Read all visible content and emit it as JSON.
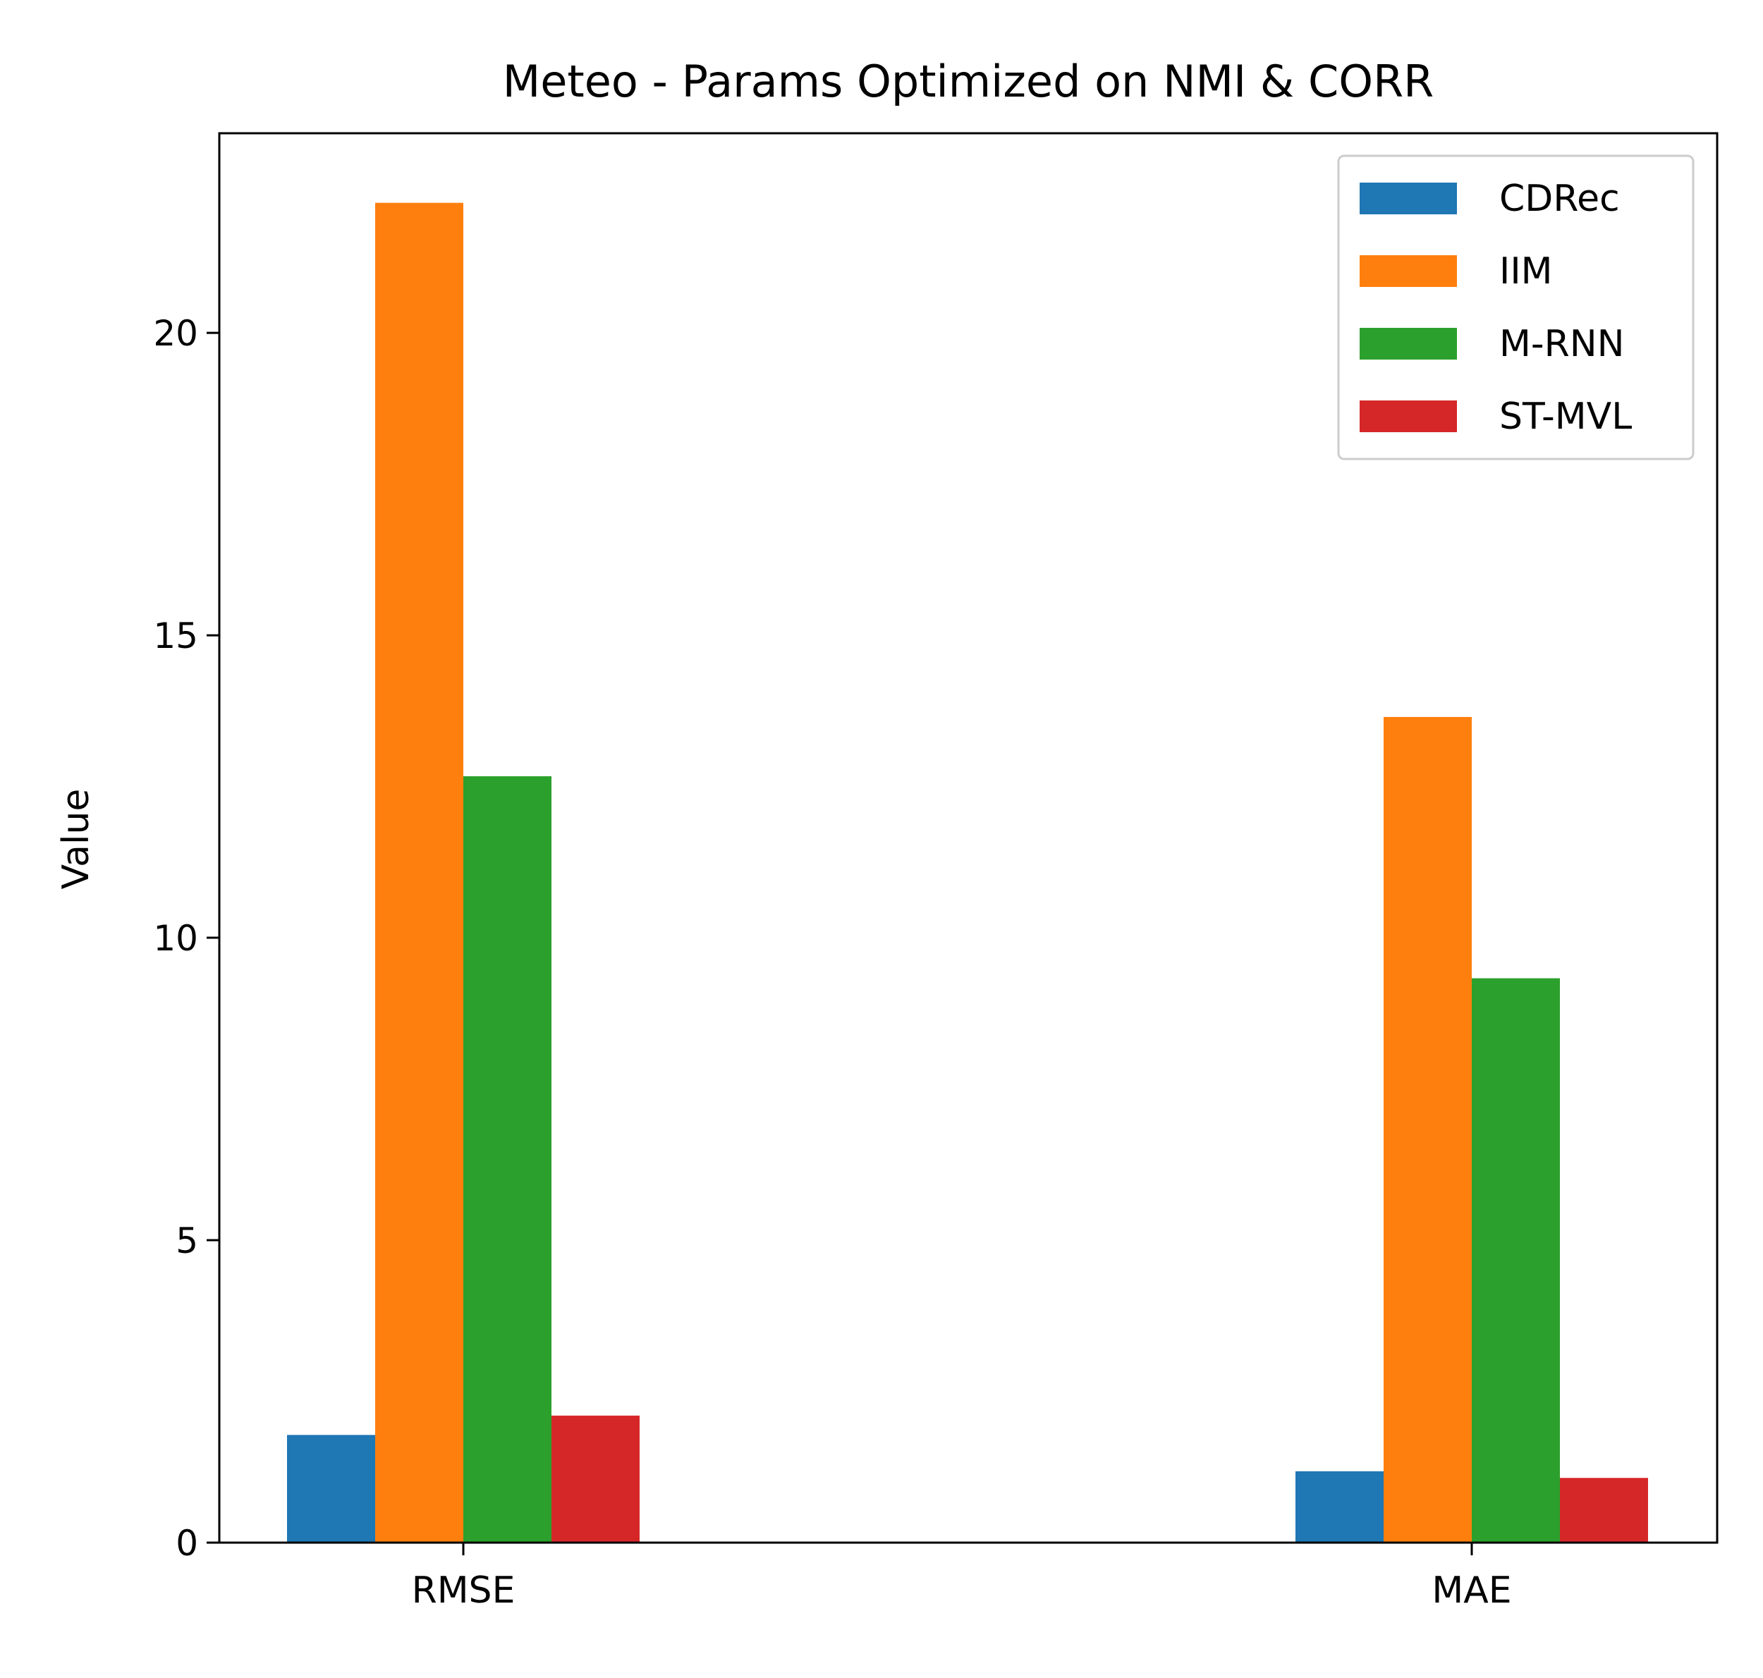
{
  "chart_data": {
    "type": "bar",
    "title": "Meteo - Params Optimized on NMI & CORR",
    "xlabel": "",
    "ylabel": "Value",
    "categories": [
      "RMSE",
      "MAE"
    ],
    "ylim": [
      0,
      23.3
    ],
    "yticks": [
      0,
      5,
      10,
      15,
      20
    ],
    "grid": false,
    "legend_position": "top-right",
    "series": [
      {
        "name": "CDRec",
        "color": "#1f77b4",
        "values": [
          1.78,
          1.18
        ]
      },
      {
        "name": "IIM",
        "color": "#ff7f0e",
        "values": [
          22.15,
          13.65
        ]
      },
      {
        "name": "M-RNN",
        "color": "#2ca02c",
        "values": [
          12.67,
          9.33
        ]
      },
      {
        "name": "ST-MVL",
        "color": "#d62728",
        "values": [
          2.1,
          1.07
        ]
      }
    ]
  }
}
